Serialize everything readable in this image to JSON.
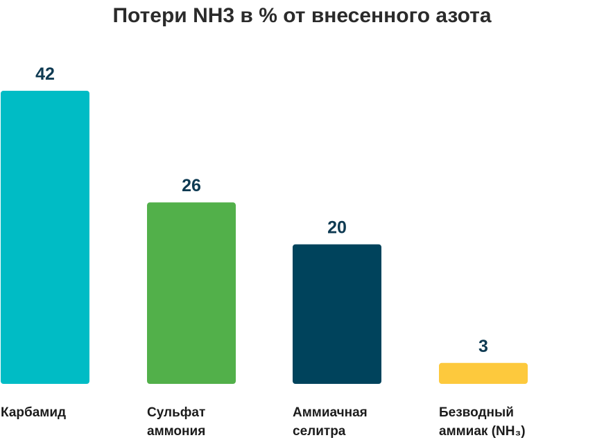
{
  "chart_data": {
    "type": "bar",
    "title": "Потери NH3 в % от внесенного азота",
    "categories": [
      [
        "Карбамид"
      ],
      [
        "Сульфат",
        "аммония"
      ],
      [
        "Аммиачная",
        "селитра"
      ],
      [
        "Безводный",
        "аммиак (NH₃)"
      ]
    ],
    "values": [
      42,
      26,
      20,
      3
    ],
    "value_labels": [
      "42",
      "26",
      "20",
      "3"
    ],
    "colors": [
      "#00bcc5",
      "#52b04a",
      "#00435c",
      "#fdc93d"
    ],
    "xlabel": "",
    "ylabel": "",
    "ylim": [
      0,
      42
    ],
    "grid": false,
    "legend": "none"
  }
}
